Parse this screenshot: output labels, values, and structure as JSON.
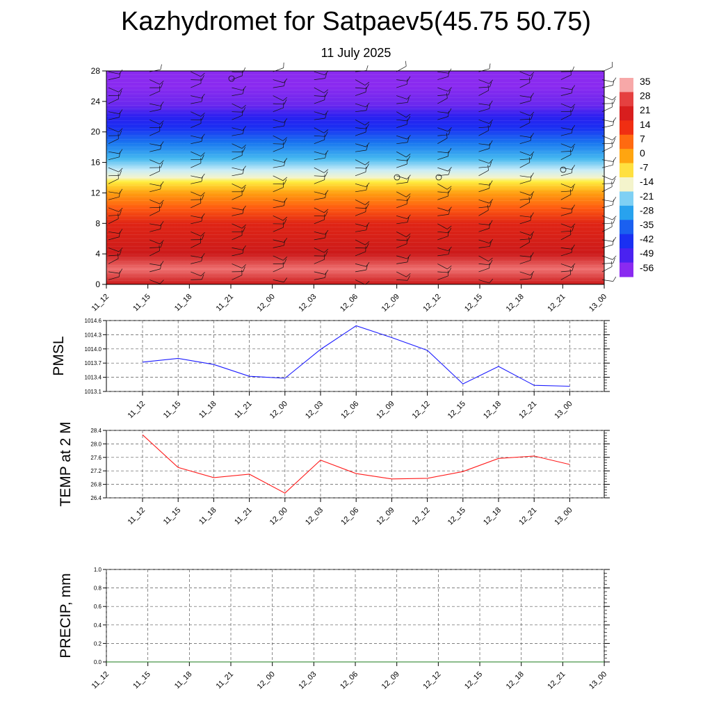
{
  "title": "Kazhydromet for Satpaev5(45.75 50.75)",
  "subtitle": "11 July 2025",
  "chart_data": [
    {
      "type": "heatmap",
      "name": "temperature-height cross section with wind barbs",
      "x_ticks": [
        "11_12",
        "11_15",
        "11_18",
        "11_21",
        "12_00",
        "12_03",
        "12_06",
        "12_09",
        "12_12",
        "12_15",
        "12_18",
        "12_21",
        "13_00"
      ],
      "y_ticks": [
        0,
        4,
        8,
        12,
        16,
        20,
        24,
        28
      ],
      "ylim": [
        0,
        28
      ],
      "colorbar_labels": [
        "35",
        "28",
        "21",
        "14",
        "7",
        "0",
        "-7",
        "-14",
        "-21",
        "-28",
        "-35",
        "-42",
        "-49",
        "-56"
      ],
      "color_stops": [
        {
          "level": 0,
          "color": "#cc1a1a"
        },
        {
          "level": 2,
          "color": "#ee7070"
        },
        {
          "level": 4,
          "color": "#cc1a1a"
        },
        {
          "level": 8,
          "color": "#e02515"
        },
        {
          "level": 10,
          "color": "#ff5a10"
        },
        {
          "level": 12,
          "color": "#ffa010"
        },
        {
          "level": 13.5,
          "color": "#ffef40"
        },
        {
          "level": 14,
          "color": "#f4f4cc"
        },
        {
          "level": 15,
          "color": "#c8ecf8"
        },
        {
          "level": 16.5,
          "color": "#44b8f0"
        },
        {
          "level": 18.5,
          "color": "#1a78f0"
        },
        {
          "level": 20.5,
          "color": "#1a2ff2"
        },
        {
          "level": 22,
          "color": "#2a20f0"
        },
        {
          "level": 23.5,
          "color": "#6a28ee"
        },
        {
          "level": 26,
          "color": "#8a2af0"
        },
        {
          "level": 28,
          "color": "#8a2af0"
        }
      ]
    },
    {
      "type": "line",
      "ylabel": "PMSL",
      "x_ticks": [
        "11_12",
        "11_15",
        "11_18",
        "11_21",
        "12_00",
        "12_03",
        "12_06",
        "12_09",
        "12_12",
        "12_15",
        "12_18",
        "12_21",
        "13_00"
      ],
      "y_ticks": [
        "1013.1",
        "1013.4",
        "1013.7",
        "1014.0",
        "1014.3",
        "1014.6"
      ],
      "ylim": [
        1013.1,
        1014.6
      ],
      "series": [
        {
          "color": "#1a1aff",
          "values": [
            1013.72,
            1013.8,
            1013.67,
            1013.42,
            1013.38,
            1013.99,
            1014.49,
            1014.24,
            1013.97,
            1013.26,
            1013.63,
            1013.23,
            1013.21
          ]
        }
      ]
    },
    {
      "type": "line",
      "ylabel": "TEMP at 2 M",
      "x_ticks": [
        "11_12",
        "11_15",
        "11_18",
        "11_21",
        "12_00",
        "12_03",
        "12_06",
        "12_09",
        "12_12",
        "12_15",
        "12_18",
        "12_21",
        "13_00"
      ],
      "y_ticks": [
        "26.4",
        "26.8",
        "27.2",
        "27.6",
        "28.0",
        "28.4"
      ],
      "ylim": [
        26.4,
        28.4
      ],
      "series": [
        {
          "color": "#ff1a1a",
          "values": [
            28.27,
            27.3,
            27.0,
            27.1,
            26.54,
            27.52,
            27.12,
            26.96,
            26.98,
            27.18,
            27.57,
            27.64,
            27.39
          ]
        }
      ]
    },
    {
      "type": "line",
      "ylabel": "PRECIP, mm",
      "x_ticks": [
        "11_12",
        "11_15",
        "11_18",
        "11_21",
        "12_00",
        "12_03",
        "12_06",
        "12_09",
        "12_12",
        "12_15",
        "12_18",
        "12_21",
        "13_00"
      ],
      "y_ticks": [
        "0.0",
        "0.2",
        "0.4",
        "0.6",
        "0.8",
        "1.0"
      ],
      "ylim": [
        0,
        1.0
      ],
      "series": [
        {
          "color": "#1a7a1a",
          "values": [
            0,
            0,
            0,
            0,
            0,
            0,
            0,
            0,
            0,
            0,
            0,
            0,
            0
          ]
        }
      ]
    }
  ]
}
